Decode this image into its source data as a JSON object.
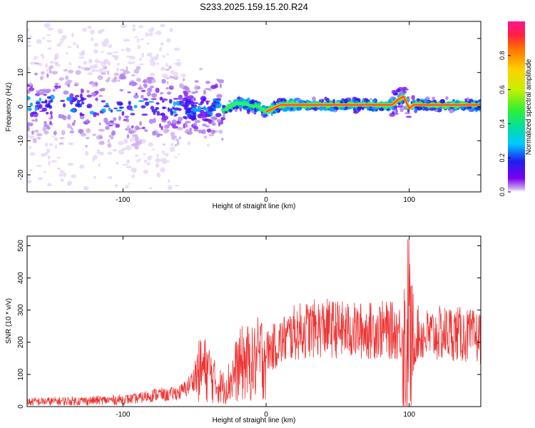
{
  "title": "S233.2025.159.15.20.R24",
  "chart_data": [
    {
      "type": "heatmap",
      "xlabel": "Height of straight line (km)",
      "ylabel": "Frequency (Hz)",
      "xlim": [
        -167,
        150
      ],
      "ylim": [
        -25,
        25
      ],
      "x_ticks": [
        -100,
        0,
        100
      ],
      "y_ticks": [
        -20,
        -10,
        0,
        10,
        20
      ],
      "grid": false,
      "colorbar": {
        "label": "Normalized spectral amplitude",
        "range": [
          0,
          1
        ],
        "ticks": [
          0,
          0.2,
          0.4,
          0.6,
          0.8
        ]
      },
      "ridge": [
        [
          -167,
          0.5
        ],
        [
          -150,
          1.0
        ],
        [
          -130,
          0.5
        ],
        [
          -110,
          -0.5
        ],
        [
          -100,
          0.5
        ],
        [
          -90,
          -0.5
        ],
        [
          -80,
          0.0
        ],
        [
          -70,
          -0.5
        ],
        [
          -60,
          0.0
        ],
        [
          -50,
          -1.5
        ],
        [
          -45,
          0.5
        ],
        [
          -40,
          -2.0
        ],
        [
          -35,
          1.0
        ],
        [
          -30,
          -1.0
        ],
        [
          -25,
          0.0
        ],
        [
          -20,
          1.0
        ],
        [
          -15,
          0.8
        ],
        [
          -10,
          0.2
        ],
        [
          -5,
          0.0
        ],
        [
          0,
          -1.5
        ],
        [
          5,
          -0.5
        ],
        [
          10,
          0.5
        ],
        [
          20,
          0.5
        ],
        [
          40,
          0.5
        ],
        [
          60,
          0.5
        ],
        [
          80,
          0.5
        ],
        [
          88,
          0.5
        ],
        [
          92,
          2.0
        ],
        [
          96,
          3.0
        ],
        [
          100,
          -0.5
        ],
        [
          103,
          0.5
        ],
        [
          120,
          0.5
        ],
        [
          135,
          0.5
        ],
        [
          150,
          0.5
        ]
      ]
    },
    {
      "type": "line",
      "xlabel": "Height of straight line (km)",
      "ylabel": "SNR (10 * v/v)",
      "xlim": [
        -167,
        150
      ],
      "ylim": [
        0,
        530
      ],
      "x_ticks": [
        -100,
        0,
        100
      ],
      "y_ticks": [
        0,
        100,
        200,
        300,
        400,
        500
      ],
      "grid": false,
      "color": "#ee3333",
      "series": [
        {
          "x": [
            -167,
            -150,
            -130,
            -110,
            -100,
            -90,
            -80,
            -75,
            -70,
            -60,
            -55,
            -50,
            -45,
            -40,
            -35,
            -30,
            -25,
            -20,
            -15,
            -10,
            -5,
            0,
            10,
            20,
            30,
            40,
            50,
            60,
            70,
            80,
            90,
            95,
            98,
            100,
            102,
            105,
            110,
            120,
            130,
            140,
            150
          ],
          "values": [
            15,
            16,
            18,
            20,
            22,
            25,
            35,
            40,
            35,
            45,
            60,
            90,
            120,
            110,
            70,
            60,
            80,
            120,
            140,
            130,
            150,
            170,
            200,
            230,
            240,
            245,
            240,
            235,
            235,
            240,
            235,
            230,
            150,
            220,
            140,
            230,
            220,
            225,
            230,
            220,
            215
          ]
        }
      ]
    }
  ]
}
